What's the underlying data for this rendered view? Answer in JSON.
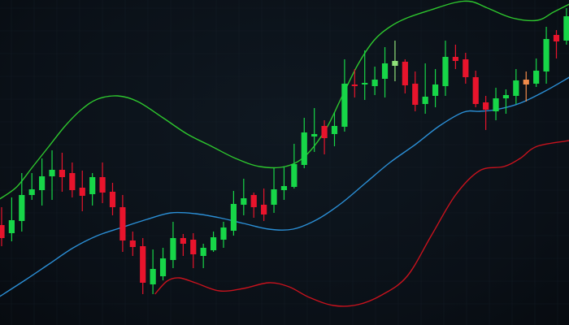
{
  "chart_data": {
    "type": "candlestick",
    "title": "",
    "xlabel": "",
    "ylabel": "",
    "grid": true,
    "axes_visible": false,
    "xlim": [
      -0.16,
      56.25
    ],
    "ylim": [
      0,
      400
    ],
    "colors": {
      "background": "#0a1017",
      "grid": "#16212b",
      "up": "#17d648",
      "down": "#e8142c",
      "upper_band": "#2ec72e",
      "middle_band": "#2b8fd6",
      "lower_band": "#c8121d"
    },
    "candles_ohlc": [
      [
        123,
        145,
        97,
        107
      ],
      [
        113,
        157,
        103,
        129
      ],
      [
        128,
        187,
        115,
        160
      ],
      [
        160,
        187,
        154,
        167
      ],
      [
        166,
        205,
        147,
        183
      ],
      [
        183,
        215,
        154,
        191
      ],
      [
        191,
        212,
        164,
        182
      ],
      [
        187,
        200,
        157,
        166
      ],
      [
        169,
        190,
        140,
        159
      ],
      [
        161,
        187,
        147,
        182
      ],
      [
        182,
        200,
        150,
        163
      ],
      [
        164,
        175,
        135,
        145
      ],
      [
        145,
        160,
        90,
        104
      ],
      [
        104,
        115,
        85,
        96
      ],
      [
        97,
        107,
        38,
        52
      ],
      [
        50,
        93,
        38,
        69
      ],
      [
        60,
        95,
        55,
        82
      ],
      [
        80,
        127,
        70,
        107
      ],
      [
        107,
        112,
        85,
        100
      ],
      [
        105,
        113,
        70,
        87
      ],
      [
        85,
        100,
        70,
        95
      ],
      [
        92,
        115,
        90,
        108
      ],
      [
        105,
        127,
        95,
        120
      ],
      [
        116,
        165,
        110,
        149
      ],
      [
        148,
        180,
        135,
        156
      ],
      [
        160,
        163,
        132,
        145
      ],
      [
        148,
        168,
        128,
        136
      ],
      [
        148,
        193,
        138,
        167
      ],
      [
        166,
        195,
        154,
        171
      ],
      [
        170,
        223,
        168,
        198
      ],
      [
        197,
        255,
        193,
        237
      ],
      [
        232,
        267,
        213,
        235
      ],
      [
        245,
        252,
        210,
        230
      ],
      [
        235,
        262,
        220,
        245
      ],
      [
        244,
        327,
        238,
        297
      ],
      [
        296,
        315,
        280,
        294
      ],
      [
        296,
        338,
        277,
        298
      ],
      [
        294,
        318,
        283,
        302
      ],
      [
        303,
        342,
        280,
        322
      ],
      [
        319,
        350,
        300,
        325
      ],
      [
        324,
        327,
        285,
        295
      ],
      [
        297,
        312,
        263,
        271
      ],
      [
        272,
        322,
        260,
        281
      ],
      [
        282,
        315,
        268,
        296
      ],
      [
        294,
        350,
        282,
        330
      ],
      [
        330,
        345,
        315,
        325
      ],
      [
        327,
        335,
        297,
        305
      ],
      [
        305,
        313,
        268,
        272
      ],
      [
        274,
        282,
        240,
        265
      ],
      [
        263,
        292,
        252,
        279
      ],
      [
        279,
        290,
        260,
        283
      ],
      [
        282,
        315,
        272,
        301
      ],
      [
        296,
        312,
        275,
        302
      ],
      [
        297,
        328,
        293,
        313
      ],
      [
        312,
        367,
        297,
        352
      ],
      [
        357,
        363,
        328,
        349
      ],
      [
        350,
        390,
        345,
        380
      ]
    ],
    "candle_color_overrides": {
      "39": "#8fe07a",
      "52": "#f08a4a"
    },
    "bands": {
      "upper": {
        "x": [
          -0.2,
          1.5,
          3.1,
          4.7,
          6.3,
          7.9,
          9.5,
          11.5,
          13.5,
          16,
          18.4,
          20.8,
          23.2,
          25.6,
          28.1,
          30.1,
          32.1,
          33.7,
          35.3,
          36.9,
          38.5,
          40.2,
          42.6,
          45,
          46.6,
          48.2,
          50.6,
          53.1,
          54.7,
          56.3
        ],
        "y": [
          155,
          170,
          195,
          220,
          245,
          265,
          278,
          282,
          275,
          255,
          235,
          220,
          205,
          195,
          195,
          208,
          240,
          280,
          320,
          350,
          367,
          378,
          388,
          397,
          398,
          390,
          378,
          375,
          385,
          395
        ]
      },
      "middle": {
        "x": [
          -0.2,
          2.3,
          4.7,
          7.1,
          9.5,
          11.9,
          14.4,
          16.8,
          19.2,
          21.6,
          24.0,
          26.5,
          28.9,
          31.3,
          33.7,
          36.1,
          38.5,
          41,
          43.4,
          45.8,
          47.4,
          49,
          51.4,
          53.9,
          56.3
        ],
        "y": [
          35,
          55,
          75,
          95,
          110,
          120,
          130,
          138,
          137,
          132,
          125,
          118,
          118,
          130,
          150,
          175,
          200,
          222,
          245,
          262,
          263,
          265,
          273,
          288,
          305
        ]
      },
      "lower": {
        "x": [
          15.2,
          16.4,
          17.6,
          19.2,
          21.6,
          24,
          26.5,
          28.5,
          30.5,
          32.9,
          35.3,
          37.7,
          40.2,
          42.6,
          45,
          47.4,
          49.8,
          51.4,
          53.1,
          56.3
        ],
        "y": [
          38,
          54,
          58,
          52,
          42,
          45,
          52,
          47,
          34,
          24,
          25,
          37,
          60,
          110,
          160,
          190,
          195,
          205,
          220,
          227
        ]
      }
    }
  }
}
